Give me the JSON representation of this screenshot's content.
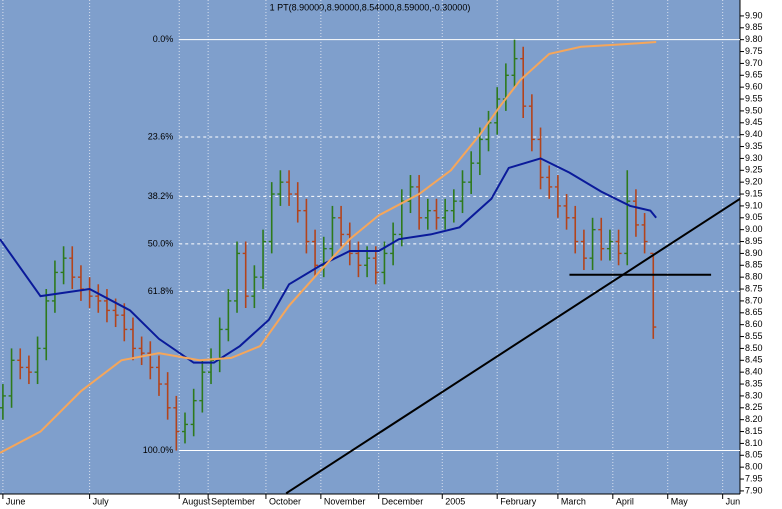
{
  "chart_data": {
    "type": "ohlc",
    "title": "1 PT(8.90000,8.90000,8.54000,8.59000,-0.30000)",
    "background": "#7f9fcc",
    "up_color": "#2e7a1c",
    "down_color": "#b3441c",
    "x": [
      1,
      4,
      7,
      10,
      13,
      16,
      19,
      22,
      25,
      28,
      31,
      34,
      37,
      40,
      43,
      46,
      49,
      52,
      55,
      58,
      61,
      64,
      67,
      70,
      73,
      76,
      79,
      82,
      85,
      88,
      91,
      94,
      97,
      100,
      103,
      106,
      109,
      112,
      115,
      118,
      121,
      124,
      127,
      130,
      133,
      136,
      139,
      142,
      145,
      148,
      151,
      154,
      157,
      160,
      163,
      166,
      169,
      172,
      175,
      178,
      181,
      184,
      187,
      190,
      193,
      196,
      199,
      202,
      205,
      208,
      211,
      214,
      217,
      220,
      223,
      226
    ],
    "open": [
      8.25,
      8.3,
      8.45,
      8.42,
      8.4,
      8.5,
      8.7,
      8.82,
      8.88,
      8.8,
      8.75,
      8.72,
      8.7,
      8.66,
      8.64,
      8.58,
      8.5,
      8.48,
      8.42,
      8.35,
      8.25,
      8.15,
      8.18,
      8.28,
      8.4,
      8.45,
      8.58,
      8.7,
      8.9,
      8.72,
      8.8,
      8.95,
      9.15,
      9.2,
      9.15,
      9.08,
      8.95,
      8.85,
      8.92,
      9.05,
      8.98,
      8.9,
      8.85,
      8.88,
      8.82,
      8.9,
      8.98,
      9.12,
      9.18,
      9.05,
      9.08,
      9.05,
      9.08,
      9.12,
      9.2,
      9.28,
      9.38,
      9.45,
      9.55,
      9.65,
      9.72,
      9.52,
      9.38,
      9.22,
      9.18,
      9.1,
      9.05,
      8.95,
      8.88,
      9.0,
      8.92,
      8.95,
      8.9,
      9.12,
      9.02,
      8.9
    ],
    "high": [
      8.35,
      8.5,
      8.5,
      8.47,
      8.55,
      8.75,
      8.87,
      8.93,
      8.93,
      8.85,
      8.8,
      8.77,
      8.75,
      8.71,
      8.69,
      8.63,
      8.55,
      8.53,
      8.47,
      8.4,
      8.3,
      8.23,
      8.33,
      8.45,
      8.5,
      8.63,
      8.75,
      8.95,
      8.95,
      8.85,
      9.0,
      9.2,
      9.25,
      9.25,
      9.2,
      9.13,
      9.0,
      8.97,
      9.1,
      9.1,
      9.03,
      8.95,
      8.93,
      8.93,
      8.95,
      9.03,
      9.17,
      9.23,
      9.23,
      9.13,
      9.13,
      9.13,
      9.17,
      9.25,
      9.33,
      9.43,
      9.5,
      9.6,
      9.7,
      9.8,
      9.77,
      9.57,
      9.43,
      9.27,
      9.23,
      9.15,
      9.1,
      9.0,
      9.05,
      9.05,
      9.0,
      9.0,
      9.25,
      9.17,
      9.07,
      8.9
    ],
    "low": [
      8.2,
      8.25,
      8.37,
      8.35,
      8.35,
      8.45,
      8.65,
      8.77,
      8.75,
      8.7,
      8.67,
      8.65,
      8.61,
      8.59,
      8.53,
      8.45,
      8.43,
      8.37,
      8.3,
      8.2,
      8.07,
      8.1,
      8.13,
      8.23,
      8.35,
      8.4,
      8.53,
      8.65,
      8.67,
      8.67,
      8.75,
      8.9,
      9.1,
      9.1,
      9.03,
      8.9,
      8.8,
      8.8,
      8.87,
      8.93,
      8.85,
      8.8,
      8.8,
      8.77,
      8.77,
      8.85,
      8.93,
      9.07,
      9.0,
      9.0,
      9.0,
      9.0,
      9.03,
      9.07,
      9.15,
      9.23,
      9.33,
      9.4,
      9.5,
      9.6,
      9.47,
      9.33,
      9.17,
      9.13,
      9.05,
      9.0,
      8.9,
      8.83,
      8.83,
      8.87,
      8.87,
      8.85,
      8.85,
      8.97,
      8.9,
      8.54
    ],
    "close": [
      8.3,
      8.45,
      8.42,
      8.4,
      8.5,
      8.7,
      8.82,
      8.88,
      8.8,
      8.75,
      8.72,
      8.7,
      8.66,
      8.64,
      8.58,
      8.5,
      8.48,
      8.42,
      8.35,
      8.25,
      8.15,
      8.18,
      8.28,
      8.4,
      8.45,
      8.58,
      8.7,
      8.9,
      8.72,
      8.8,
      8.95,
      9.15,
      9.2,
      9.15,
      9.08,
      8.95,
      8.85,
      8.92,
      9.05,
      8.98,
      8.9,
      8.85,
      8.88,
      8.82,
      8.9,
      8.98,
      9.12,
      9.18,
      9.05,
      9.08,
      9.05,
      9.08,
      9.12,
      9.2,
      9.28,
      9.38,
      9.45,
      9.55,
      9.65,
      9.72,
      9.52,
      9.38,
      9.22,
      9.18,
      9.1,
      9.05,
      8.95,
      8.88,
      9.0,
      8.92,
      8.95,
      8.9,
      9.12,
      9.02,
      8.95,
      8.59
    ],
    "moving_averages": [
      {
        "color": "#0a1a9a",
        "x": [
          0,
          14,
          31,
          45,
          55,
          67,
          74,
          83,
          93,
          100,
          111,
          121,
          131,
          138,
          149,
          159,
          170,
          176,
          187,
          197,
          208,
          218,
          225,
          227
        ],
        "values": [
          8.96,
          8.72,
          8.75,
          8.66,
          8.54,
          8.44,
          8.44,
          8.51,
          8.62,
          8.77,
          8.85,
          8.91,
          8.91,
          8.96,
          8.98,
          9.01,
          9.13,
          9.26,
          9.3,
          9.24,
          9.16,
          9.1,
          9.08,
          9.05
        ]
      },
      {
        "color": "#f5a65b",
        "x": [
          0,
          14,
          28,
          42,
          55,
          69,
          80,
          90,
          100,
          111,
          121,
          131,
          145,
          156,
          166,
          173,
          180,
          190,
          201,
          215,
          227
        ],
        "values": [
          8.06,
          8.15,
          8.32,
          8.45,
          8.48,
          8.45,
          8.46,
          8.51,
          8.68,
          8.83,
          8.96,
          9.06,
          9.15,
          9.25,
          9.4,
          9.52,
          9.63,
          9.74,
          9.77,
          9.78,
          9.79
        ]
      }
    ],
    "trendlines": [
      {
        "color": "#000000",
        "x": [
          99,
          256
        ],
        "values": [
          7.89,
          9.13
        ]
      },
      {
        "color": "#000000",
        "x": [
          197,
          246
        ],
        "values": [
          8.81,
          8.81
        ]
      }
    ],
    "fib_start_x": 62,
    "fib_levels": [
      {
        "label": "0.0%",
        "value": 9.8,
        "style": "solid"
      },
      {
        "label": "23.6%",
        "value": 9.39,
        "style": "dashed"
      },
      {
        "label": "38.2%",
        "value": 9.14,
        "style": "dashed"
      },
      {
        "label": "50.0%",
        "value": 8.94,
        "style": "dashed"
      },
      {
        "label": "61.8%",
        "value": 8.74,
        "style": "dashed"
      },
      {
        "label": "100.0%",
        "value": 8.07,
        "style": "solid"
      }
    ],
    "xlim": [
      0,
      256
    ],
    "ylim": [
      7.887,
      9.967
    ],
    "xticks": [
      {
        "value": 1,
        "label": "June"
      },
      {
        "value": 31,
        "label": "July"
      },
      {
        "value": 62,
        "label": "August"
      },
      {
        "value": 72,
        "label": "September"
      },
      {
        "value": 92,
        "label": "October"
      },
      {
        "value": 111,
        "label": "November"
      },
      {
        "value": 131,
        "label": "December"
      },
      {
        "value": 153,
        "label": "2005"
      },
      {
        "value": 172,
        "label": "February"
      },
      {
        "value": 193,
        "label": "March"
      },
      {
        "value": 212,
        "label": "April"
      },
      {
        "value": 231,
        "label": "May"
      },
      {
        "value": 250,
        "label": "Jun"
      }
    ],
    "yticks": [
      {
        "value": 7.9,
        "label": "7.90"
      },
      {
        "value": 7.95,
        "label": "7.95"
      },
      {
        "value": 8.0,
        "label": "8.00"
      },
      {
        "value": 8.05,
        "label": "8.05"
      },
      {
        "value": 8.1,
        "label": "8.10"
      },
      {
        "value": 8.15,
        "label": "8.15"
      },
      {
        "value": 8.2,
        "label": "8.20"
      },
      {
        "value": 8.25,
        "label": "8.25"
      },
      {
        "value": 8.3,
        "label": "8.30"
      },
      {
        "value": 8.35,
        "label": "8.35"
      },
      {
        "value": 8.4,
        "label": "8.40"
      },
      {
        "value": 8.45,
        "label": "8.45"
      },
      {
        "value": 8.5,
        "label": "8.50"
      },
      {
        "value": 8.55,
        "label": "8.55"
      },
      {
        "value": 8.6,
        "label": "8.60"
      },
      {
        "value": 8.65,
        "label": "8.65"
      },
      {
        "value": 8.7,
        "label": "8.70"
      },
      {
        "value": 8.75,
        "label": "8.75"
      },
      {
        "value": 8.8,
        "label": "8.80"
      },
      {
        "value": 8.85,
        "label": "8.85"
      },
      {
        "value": 8.9,
        "label": "8.90"
      },
      {
        "value": 8.95,
        "label": "8.95"
      },
      {
        "value": 9.0,
        "label": "9.00"
      },
      {
        "value": 9.05,
        "label": "9.05"
      },
      {
        "value": 9.1,
        "label": "9.10"
      },
      {
        "value": 9.15,
        "label": "9.15"
      },
      {
        "value": 9.2,
        "label": "9.20"
      },
      {
        "value": 9.25,
        "label": "9.25"
      },
      {
        "value": 9.3,
        "label": "9.30"
      },
      {
        "value": 9.35,
        "label": "9.35"
      },
      {
        "value": 9.4,
        "label": "9.40"
      },
      {
        "value": 9.45,
        "label": "9.45"
      },
      {
        "value": 9.5,
        "label": "9.50"
      },
      {
        "value": 9.55,
        "label": "9.55"
      },
      {
        "value": 9.6,
        "label": "9.60"
      },
      {
        "value": 9.65,
        "label": "9.65"
      },
      {
        "value": 9.7,
        "label": "9.70"
      },
      {
        "value": 9.75,
        "label": "9.75"
      },
      {
        "value": 9.8,
        "label": "9.80"
      },
      {
        "value": 9.85,
        "label": "9.85"
      },
      {
        "value": 9.9,
        "label": "9.90"
      }
    ],
    "grid": true
  }
}
